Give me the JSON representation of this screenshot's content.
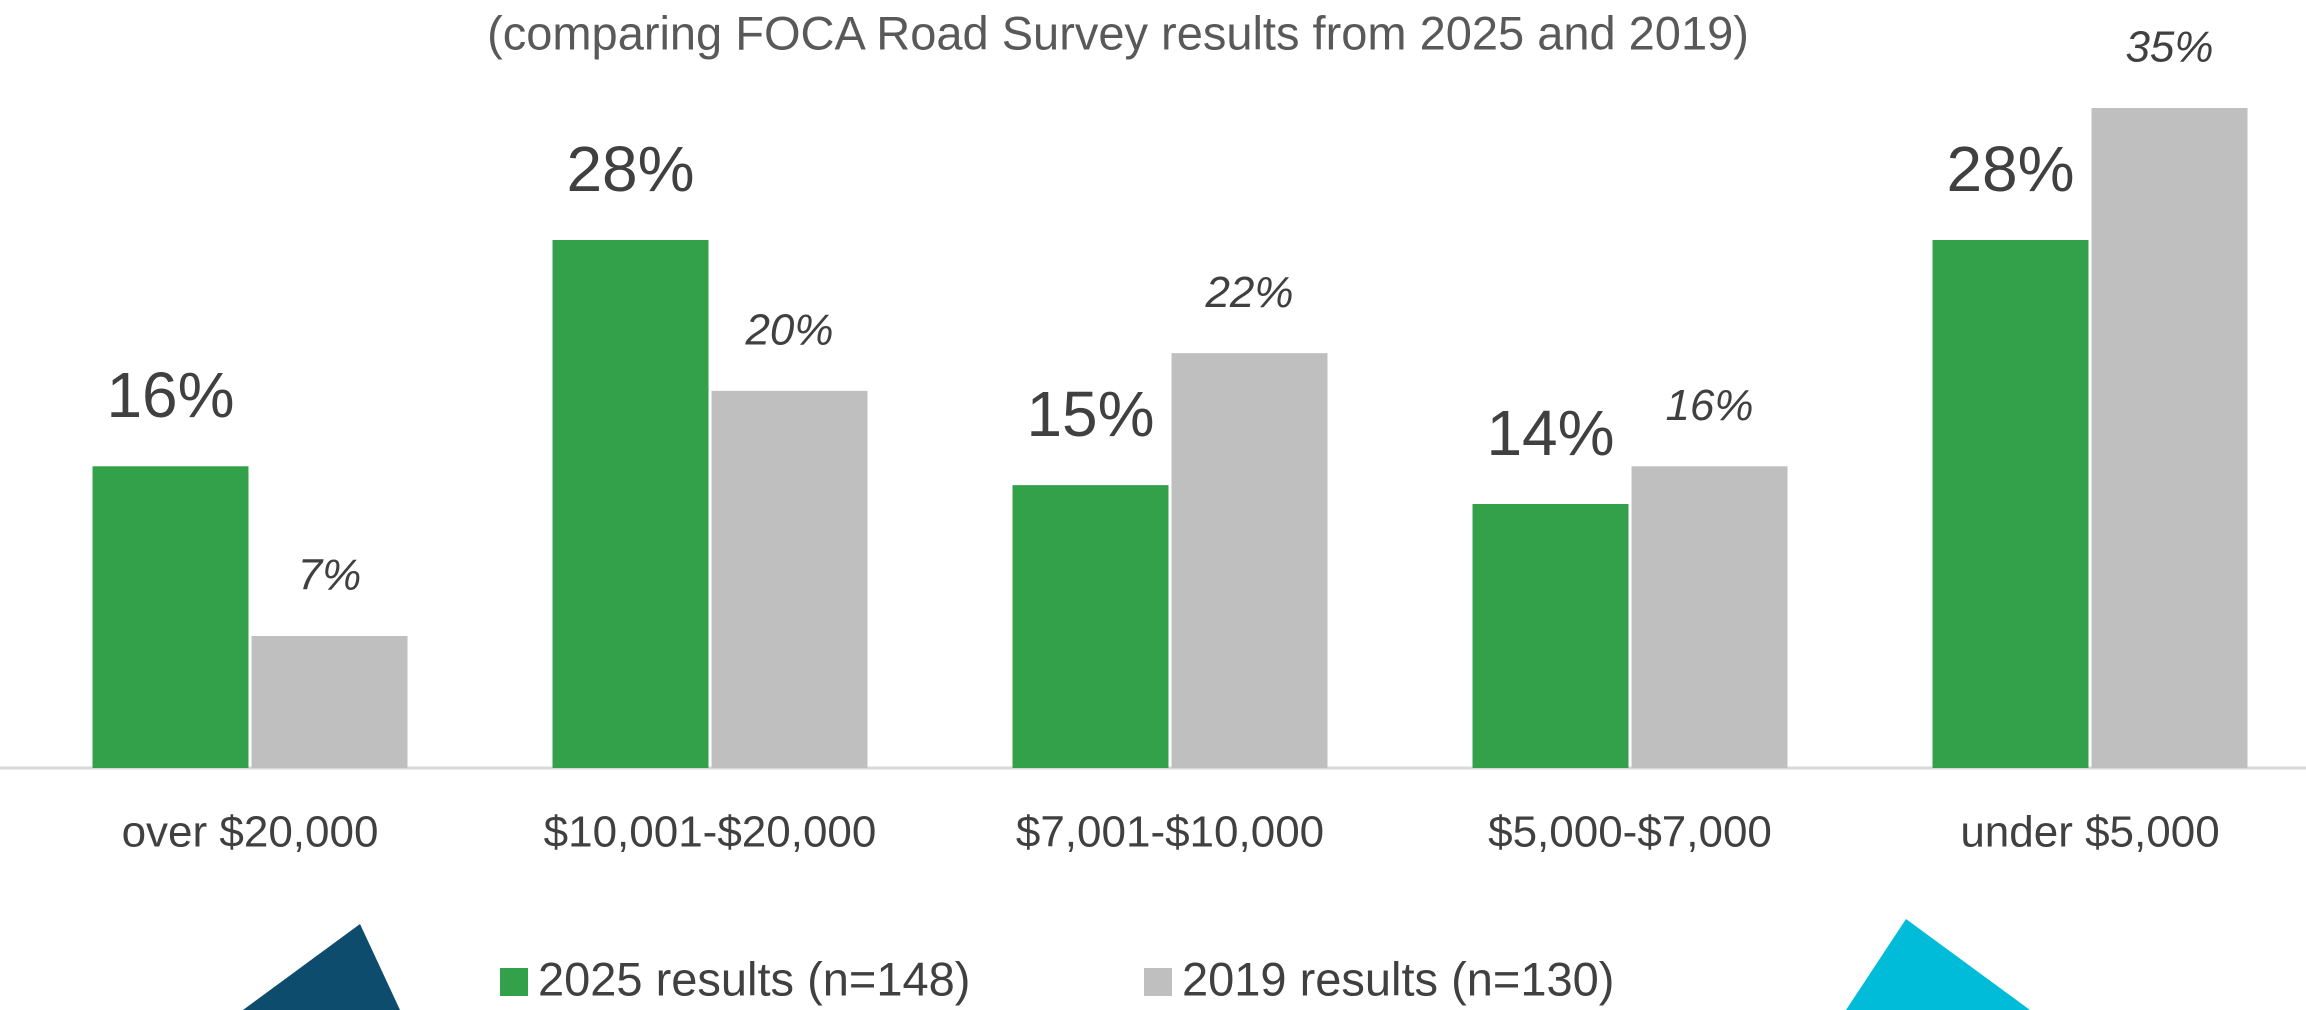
{
  "chart_data": {
    "type": "bar",
    "subtitle": "(comparing FOCA Road Survey results from 2025 and 2019)",
    "categories": [
      "over $20,000",
      "$10,001-$20,000",
      "$7,001-$10,000",
      "$5,000-$7,000",
      "under $5,000"
    ],
    "series": [
      {
        "name": "2025 results (n=148)",
        "color": "#33a04a",
        "values": [
          16,
          28,
          15,
          14,
          28
        ],
        "value_labels": [
          "16%",
          "28%",
          "15%",
          "14%",
          "28%"
        ]
      },
      {
        "name": "2019 results (n=130)",
        "color": "#bfbfbf",
        "values": [
          7,
          20,
          22,
          16,
          35
        ],
        "value_labels": [
          "7%",
          "20%",
          "22%",
          "16%",
          "35%"
        ]
      }
    ]
  }
}
